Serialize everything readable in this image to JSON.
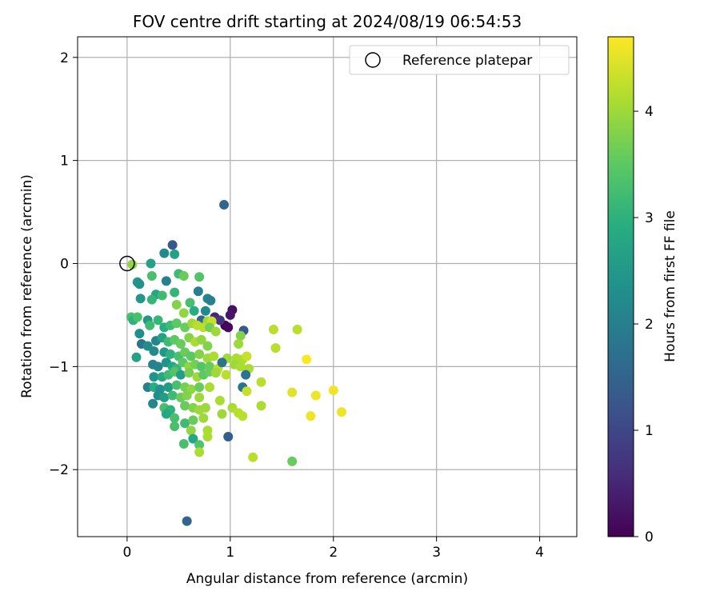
{
  "chart_data": {
    "type": "scatter",
    "title": "FOV centre drift starting at 2024/08/19 06:54:53",
    "xlabel": "Angular distance from reference (arcmin)",
    "ylabel": "Rotation from reference (arcmin)",
    "xlim": [
      -0.48,
      4.36
    ],
    "ylim": [
      -2.65,
      2.2
    ],
    "x_ticks": [
      0,
      1,
      2,
      3,
      4
    ],
    "y_ticks": [
      -2,
      -1,
      0,
      1,
      2
    ],
    "x_tick_labels": [
      "0",
      "1",
      "2",
      "3",
      "4"
    ],
    "y_tick_labels": [
      "−2",
      "−1",
      "0",
      "1",
      "2"
    ],
    "grid": true,
    "colormap": "viridis",
    "colorbar": {
      "label": "Hours from first FF file",
      "range": [
        0,
        4.7
      ],
      "ticks": [
        0,
        1,
        2,
        3,
        4
      ],
      "tick_labels": [
        "0",
        "1",
        "2",
        "3",
        "4"
      ]
    },
    "legend": {
      "placement": "top-right",
      "entries": [
        {
          "label": "Reference platepar",
          "marker": "open-circle"
        }
      ]
    },
    "reference_point": {
      "x": 0,
      "y": 0
    },
    "points": [
      [
        0.94,
        0.57,
        1.5
      ],
      [
        0.44,
        0.18,
        1.3
      ],
      [
        0.58,
        -2.5,
        1.5
      ],
      [
        0.36,
        0.1,
        2.2
      ],
      [
        0.46,
        0.09,
        2.7
      ],
      [
        0.23,
        0.0,
        2.7
      ],
      [
        0.05,
        -0.01,
        3.9
      ],
      [
        0.1,
        -0.18,
        2.5
      ],
      [
        0.12,
        -0.2,
        2.4
      ],
      [
        0.24,
        -0.12,
        3.3
      ],
      [
        0.38,
        -0.17,
        2.0
      ],
      [
        0.5,
        -0.1,
        3.2
      ],
      [
        0.55,
        -0.12,
        3.6
      ],
      [
        0.7,
        -0.13,
        3.4
      ],
      [
        0.28,
        -0.3,
        2.8
      ],
      [
        0.46,
        -0.28,
        3.1
      ],
      [
        0.69,
        -0.27,
        2.0
      ],
      [
        0.78,
        -0.34,
        2.2
      ],
      [
        0.81,
        -0.36,
        2.0
      ],
      [
        0.13,
        -0.34,
        2.5
      ],
      [
        0.24,
        -0.35,
        3.1
      ],
      [
        0.34,
        -0.31,
        3.2
      ],
      [
        0.48,
        -0.4,
        3.8
      ],
      [
        0.61,
        -0.38,
        3.3
      ],
      [
        0.55,
        -0.48,
        3.9
      ],
      [
        0.65,
        -0.46,
        2.9
      ],
      [
        0.76,
        -0.46,
        2.2
      ],
      [
        1.02,
        -0.45,
        0.2
      ],
      [
        1.0,
        -0.5,
        0.3
      ],
      [
        0.95,
        -0.6,
        0.0
      ],
      [
        0.98,
        -0.62,
        0.1
      ],
      [
        0.85,
        -0.52,
        0.5
      ],
      [
        0.9,
        -0.55,
        0.7
      ],
      [
        0.72,
        -0.55,
        1.5
      ],
      [
        0.78,
        -0.56,
        4.0
      ],
      [
        0.82,
        -0.56,
        4.3
      ],
      [
        0.04,
        -0.52,
        3.3
      ],
      [
        0.06,
        -0.55,
        3.0
      ],
      [
        0.1,
        -0.52,
        3.3
      ],
      [
        0.12,
        -0.68,
        2.3
      ],
      [
        0.2,
        -0.55,
        2.5
      ],
      [
        0.22,
        -0.6,
        3.2
      ],
      [
        0.3,
        -0.55,
        3.1
      ],
      [
        0.36,
        -0.62,
        2.9
      ],
      [
        0.42,
        -0.6,
        3.2
      ],
      [
        0.48,
        -0.58,
        3.5
      ],
      [
        0.56,
        -0.62,
        3.6
      ],
      [
        0.63,
        -0.58,
        4.0
      ],
      [
        0.68,
        -0.6,
        4.2
      ],
      [
        0.74,
        -0.62,
        4.2
      ],
      [
        0.8,
        -0.62,
        3.7
      ],
      [
        0.86,
        -0.66,
        4.0
      ],
      [
        1.13,
        -0.65,
        1.3
      ],
      [
        1.1,
        -0.7,
        3.8
      ],
      [
        1.42,
        -0.64,
        4.2
      ],
      [
        1.65,
        -0.64,
        4.2
      ],
      [
        0.14,
        -0.78,
        1.8
      ],
      [
        0.2,
        -0.8,
        2.3
      ],
      [
        0.28,
        -0.75,
        2.1
      ],
      [
        0.34,
        -0.72,
        2.7
      ],
      [
        0.4,
        -0.76,
        3.2
      ],
      [
        0.46,
        -0.74,
        3.5
      ],
      [
        0.52,
        -0.78,
        3.6
      ],
      [
        0.6,
        -0.72,
        3.8
      ],
      [
        0.66,
        -0.76,
        4.1
      ],
      [
        0.72,
        -0.74,
        3.9
      ],
      [
        0.78,
        -0.8,
        3.8
      ],
      [
        1.08,
        -0.78,
        4.0
      ],
      [
        1.44,
        -0.82,
        4.2
      ],
      [
        0.09,
        -0.91,
        2.7
      ],
      [
        0.26,
        -0.85,
        2.2
      ],
      [
        0.36,
        -0.86,
        2.5
      ],
      [
        0.42,
        -0.88,
        3.0
      ],
      [
        0.5,
        -0.9,
        3.3
      ],
      [
        0.56,
        -0.86,
        3.6
      ],
      [
        0.62,
        -0.9,
        3.5
      ],
      [
        0.7,
        -0.88,
        3.8
      ],
      [
        0.78,
        -0.92,
        4.0
      ],
      [
        0.84,
        -0.9,
        4.1
      ],
      [
        0.97,
        -0.92,
        4.0
      ],
      [
        1.06,
        -0.92,
        4.1
      ],
      [
        1.12,
        -0.93,
        4.1
      ],
      [
        1.16,
        -0.9,
        4.3
      ],
      [
        1.74,
        -0.93,
        4.7
      ],
      [
        0.25,
        -0.98,
        2.0
      ],
      [
        0.3,
        -1.0,
        2.1
      ],
      [
        0.38,
        -0.96,
        2.4
      ],
      [
        0.44,
        -1.0,
        2.8
      ],
      [
        0.48,
        -1.02,
        3.1
      ],
      [
        0.54,
        -0.96,
        3.5
      ],
      [
        0.6,
        -1.0,
        3.9
      ],
      [
        0.66,
        -0.98,
        3.7
      ],
      [
        0.72,
        -1.0,
        3.4
      ],
      [
        0.8,
        -1.0,
        3.6
      ],
      [
        0.88,
        -1.02,
        4.2
      ],
      [
        0.92,
        -0.96,
        1.8
      ],
      [
        1.04,
        -0.98,
        4.0
      ],
      [
        1.1,
        -1.0,
        4.1
      ],
      [
        1.18,
        -1.02,
        4.1
      ],
      [
        0.26,
        -1.1,
        2.4
      ],
      [
        0.34,
        -1.1,
        2.8
      ],
      [
        0.4,
        -1.08,
        3.2
      ],
      [
        0.46,
        -1.05,
        3.4
      ],
      [
        0.52,
        -1.08,
        2.6
      ],
      [
        0.6,
        -1.06,
        3.7
      ],
      [
        0.68,
        -1.1,
        4.0
      ],
      [
        0.74,
        -1.08,
        3.5
      ],
      [
        0.8,
        -1.05,
        3.6
      ],
      [
        0.86,
        -1.06,
        4.0
      ],
      [
        0.96,
        -1.08,
        4.2
      ],
      [
        1.15,
        -1.08,
        1.8
      ],
      [
        1.3,
        -1.15,
        4.2
      ],
      [
        0.2,
        -1.2,
        2.0
      ],
      [
        0.26,
        -1.2,
        2.9
      ],
      [
        0.32,
        -1.22,
        2.4
      ],
      [
        0.4,
        -1.2,
        2.6
      ],
      [
        0.48,
        -1.18,
        3.3
      ],
      [
        0.56,
        -1.2,
        3.7
      ],
      [
        0.62,
        -1.22,
        3.9
      ],
      [
        0.7,
        -1.2,
        3.6
      ],
      [
        0.8,
        -1.2,
        4.1
      ],
      [
        1.12,
        -1.2,
        1.8
      ],
      [
        1.16,
        -1.24,
        4.3
      ],
      [
        1.6,
        -1.25,
        4.5
      ],
      [
        1.83,
        -1.28,
        4.6
      ],
      [
        2.0,
        -1.23,
        4.6
      ],
      [
        0.25,
        -1.36,
        2.1
      ],
      [
        0.3,
        -1.28,
        2.3
      ],
      [
        0.36,
        -1.3,
        2.6
      ],
      [
        0.44,
        -1.28,
        3.2
      ],
      [
        0.52,
        -1.3,
        3.6
      ],
      [
        0.58,
        -1.28,
        3.8
      ],
      [
        0.7,
        -1.3,
        4.0
      ],
      [
        0.9,
        -1.33,
        4.1
      ],
      [
        0.36,
        -1.4,
        3.3
      ],
      [
        0.42,
        -1.42,
        3.0
      ],
      [
        0.56,
        -1.38,
        3.6
      ],
      [
        0.64,
        -1.4,
        3.8
      ],
      [
        0.7,
        -1.42,
        4.0
      ],
      [
        0.76,
        -1.4,
        4.0
      ],
      [
        0.92,
        -1.46,
        4.0
      ],
      [
        1.02,
        -1.4,
        4.1
      ],
      [
        1.08,
        -1.45,
        4.2
      ],
      [
        1.12,
        -1.48,
        4.2
      ],
      [
        1.3,
        -1.38,
        4.1
      ],
      [
        1.78,
        -1.48,
        4.6
      ],
      [
        2.08,
        -1.44,
        4.6
      ],
      [
        0.38,
        -1.46,
        2.8
      ],
      [
        0.46,
        -1.5,
        3.3
      ],
      [
        0.56,
        -1.55,
        3.2
      ],
      [
        0.64,
        -1.52,
        3.6
      ],
      [
        0.74,
        -1.5,
        4.0
      ],
      [
        0.46,
        -1.58,
        3.3
      ],
      [
        0.62,
        -1.62,
        3.9
      ],
      [
        0.78,
        -1.62,
        4.1
      ],
      [
        0.78,
        -1.68,
        4.1
      ],
      [
        0.98,
        -1.68,
        1.4
      ],
      [
        0.55,
        -1.75,
        3.3
      ],
      [
        0.64,
        -1.7,
        2.8
      ],
      [
        0.7,
        -1.76,
        3.4
      ],
      [
        0.7,
        -1.83,
        4.1
      ],
      [
        1.22,
        -1.88,
        4.2
      ],
      [
        1.6,
        -1.92,
        3.6
      ]
    ]
  }
}
